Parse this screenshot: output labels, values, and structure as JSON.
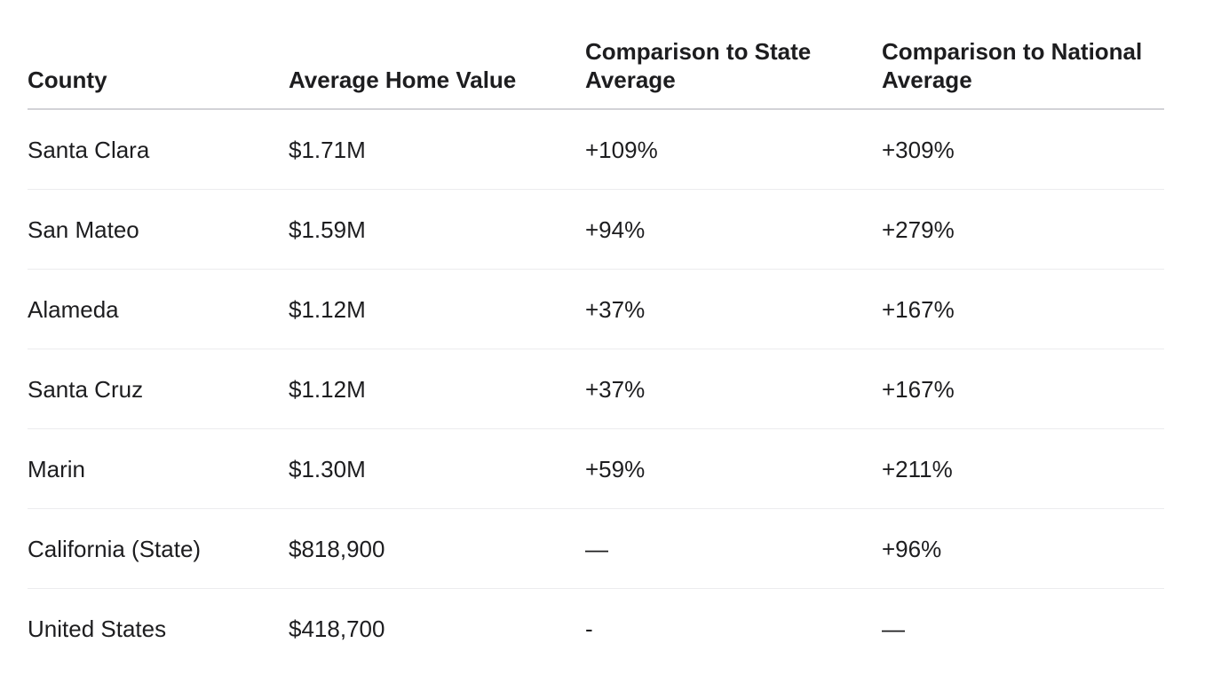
{
  "table": {
    "headers": [
      "County",
      "Average Home Value",
      "Comparison to State Average",
      "Comparison to National Average"
    ],
    "rows": [
      [
        "Santa Clara",
        "$1.71M",
        "+109%",
        "+309%"
      ],
      [
        "San Mateo",
        "$1.59M",
        "+94%",
        "+279%"
      ],
      [
        "Alameda",
        "$1.12M",
        "+37%",
        "+167%"
      ],
      [
        "Santa Cruz",
        "$1.12M",
        "+37%",
        "+167%"
      ],
      [
        "Marin",
        "$1.30M",
        "+59%",
        "+211%"
      ],
      [
        "California (State)",
        "$818,900",
        "—",
        "+96%"
      ],
      [
        "United States",
        "$418,700",
        "-",
        "—"
      ]
    ]
  }
}
